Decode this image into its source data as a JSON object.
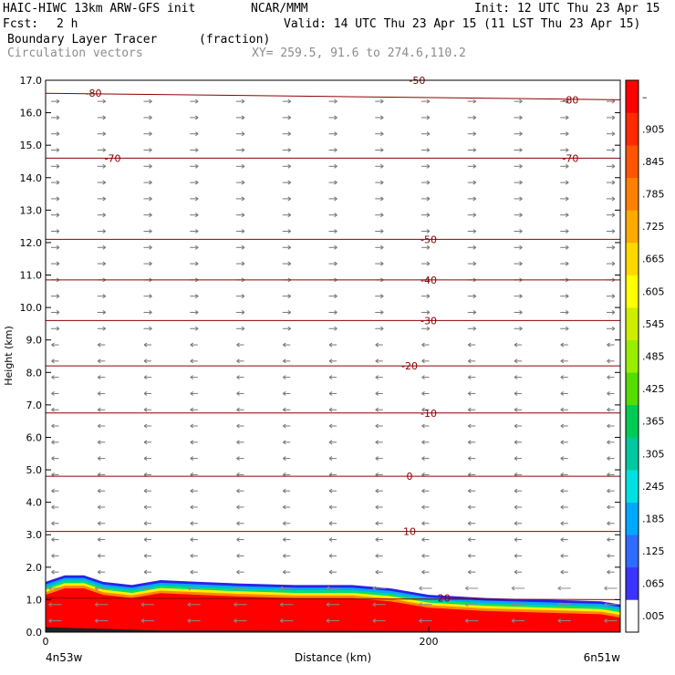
{
  "header": {
    "model": "HAIC-HIWC 13km ARW-GFS init",
    "org": "NCAR/MMM",
    "init": "Init: 12 UTC Thu 23 Apr 15",
    "fcst_label": "Fcst:",
    "fcst_value": "2 h",
    "valid": "Valid: 14 UTC Thu 23 Apr 15 (11 LST Thu 23 Apr 15)",
    "field": "Boundary Layer Tracer",
    "units": "(fraction)",
    "vectors": "Circulation vectors",
    "xy": "XY= 259.5, 91.6 to 274.6,110.2"
  },
  "chart_data": {
    "type": "heatmap",
    "xlabel": "Distance (km)",
    "ylabel": "Height (km)",
    "xlim": [
      0,
      300
    ],
    "ylim": [
      0,
      17
    ],
    "x_ticks": [
      {
        "value": 0,
        "label": "0"
      },
      {
        "value": 200,
        "label": "200"
      }
    ],
    "x_endpoint_labels": {
      "left": "4n53w",
      "right": "6n51w"
    },
    "y_ticks": [
      "0.0",
      "1.0",
      "2.0",
      "3.0",
      "4.0",
      "5.0",
      "6.0",
      "7.0",
      "8.0",
      "9.0",
      "10.0",
      "11.0",
      "12.0",
      "13.0",
      "14.0",
      "15.0",
      "16.0",
      "17.0"
    ],
    "colorbar": {
      "labels": [
        ".005",
        ".065",
        ".125",
        ".185",
        ".245",
        ".305",
        ".365",
        ".425",
        ".485",
        ".545",
        ".605",
        ".665",
        ".725",
        ".785",
        ".845",
        ".905",
        "–"
      ],
      "colors": [
        "#ffffff",
        "#3b33ff",
        "#2f6bff",
        "#00a8ff",
        "#00e0e0",
        "#00c8a0",
        "#00cc55",
        "#55dd00",
        "#99ee00",
        "#ccee00",
        "#ffff00",
        "#ffd800",
        "#ffaa00",
        "#ff8000",
        "#ff5500",
        "#ff2a00",
        "#ff0000"
      ]
    },
    "tracer_top_km": [
      [
        0,
        1.55
      ],
      [
        10,
        1.75
      ],
      [
        20,
        1.75
      ],
      [
        30,
        1.55
      ],
      [
        45,
        1.45
      ],
      [
        60,
        1.6
      ],
      [
        80,
        1.55
      ],
      [
        100,
        1.5
      ],
      [
        130,
        1.45
      ],
      [
        160,
        1.45
      ],
      [
        180,
        1.35
      ],
      [
        200,
        1.15
      ],
      [
        230,
        1.05
      ],
      [
        260,
        1.0
      ],
      [
        290,
        0.95
      ],
      [
        300,
        0.85
      ]
    ],
    "temperature_isotherms_C": [
      {
        "label": "-80",
        "z_left": 16.6,
        "z_right": 16.4
      },
      {
        "label": "-70",
        "z_left": 14.6,
        "z_right": 14.6
      },
      {
        "label": "-50",
        "z_left": 12.1,
        "z_right": 12.1
      },
      {
        "label": "-40",
        "z_left": 10.85,
        "z_right": 10.85
      },
      {
        "label": "-30",
        "z_left": 9.6,
        "z_right": 9.6
      },
      {
        "label": "-20",
        "z_left": 8.2,
        "z_right": 8.2
      },
      {
        "label": "-10",
        "z_left": 6.75,
        "z_right": 6.75
      },
      {
        "label": "0",
        "z_left": 4.8,
        "z_right": 4.8
      },
      {
        "label": "10",
        "z_left": 3.1,
        "z_right": 3.1
      },
      {
        "label": "20",
        "z_left": 1.05,
        "z_right": 1.0
      }
    ],
    "isotherm_labels": [
      {
        "text": "-80",
        "x": 25,
        "z": 16.6
      },
      {
        "text": "-80",
        "x": 274,
        "z": 16.4
      },
      {
        "text": "-70",
        "x": 35,
        "z": 14.6
      },
      {
        "text": "-70",
        "x": 274,
        "z": 14.6
      },
      {
        "text": "-50",
        "x": 200,
        "z": 12.1
      },
      {
        "text": "-40",
        "x": 200,
        "z": 10.85
      },
      {
        "text": "-30",
        "x": 200,
        "z": 9.6
      },
      {
        "text": "-20",
        "x": 190,
        "z": 8.2
      },
      {
        "text": "-10",
        "x": 200,
        "z": 6.75
      },
      {
        "text": "0",
        "x": 190,
        "z": 4.8
      },
      {
        "text": "10",
        "x": 190,
        "z": 3.1
      },
      {
        "text": "20",
        "x": 208,
        "z": 1.05
      },
      {
        "text": "-50",
        "x": 194,
        "z": 17.0
      }
    ],
    "vectors": {
      "upper_direction": "right",
      "lower_direction": "left",
      "reversal_km": 9.0
    },
    "grid": false
  }
}
